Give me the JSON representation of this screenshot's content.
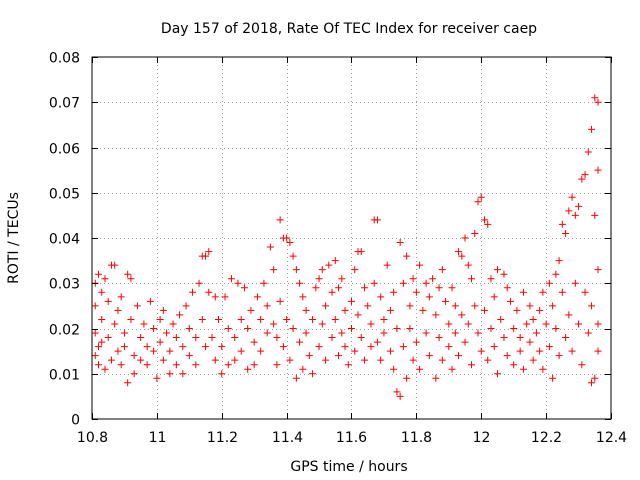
{
  "chart_data": {
    "type": "scatter",
    "title": "Day 157 of 2018, Rate Of TEC Index for receiver caep",
    "xlabel": "GPS time / hours",
    "ylabel": "ROTI / TECUs",
    "xlim": [
      10.8,
      12.4
    ],
    "ylim": [
      0,
      0.08
    ],
    "x_ticks": [
      10.8,
      11,
      11.2,
      11.4,
      11.6,
      11.8,
      12,
      12.2,
      12.4
    ],
    "x_tick_labels": [
      "10.8",
      "11",
      "11.2",
      "11.4",
      "11.6",
      "11.8",
      "12",
      "12.2",
      "12.4"
    ],
    "y_ticks": [
      0,
      0.01,
      0.02,
      0.03,
      0.04,
      0.05,
      0.06,
      0.07,
      0.08
    ],
    "y_tick_labels": [
      "0",
      "0.01",
      "0.02",
      "0.03",
      "0.04",
      "0.05",
      "0.06",
      "0.07",
      "0.08"
    ],
    "grid": true,
    "marker": "+",
    "color": "#ff0000",
    "series": [
      {
        "name": "ROTI",
        "points": [
          [
            10.81,
            0.03
          ],
          [
            10.81,
            0.025
          ],
          [
            10.81,
            0.014
          ],
          [
            10.81,
            0.019
          ],
          [
            10.82,
            0.032
          ],
          [
            10.82,
            0.016
          ],
          [
            10.82,
            0.012
          ],
          [
            10.83,
            0.028
          ],
          [
            10.83,
            0.022
          ],
          [
            10.83,
            0.017
          ],
          [
            10.84,
            0.031
          ],
          [
            10.84,
            0.011
          ],
          [
            10.85,
            0.026
          ],
          [
            10.85,
            0.018
          ],
          [
            10.86,
            0.034
          ],
          [
            10.86,
            0.013
          ],
          [
            10.87,
            0.034
          ],
          [
            10.87,
            0.021
          ],
          [
            10.88,
            0.015
          ],
          [
            10.88,
            0.024
          ],
          [
            10.89,
            0.027
          ],
          [
            10.89,
            0.012
          ],
          [
            10.9,
            0.019
          ],
          [
            10.9,
            0.016
          ],
          [
            10.91,
            0.032
          ],
          [
            10.91,
            0.008
          ],
          [
            10.92,
            0.031
          ],
          [
            10.92,
            0.022
          ],
          [
            10.93,
            0.014
          ],
          [
            10.93,
            0.01
          ],
          [
            10.94,
            0.025
          ],
          [
            10.95,
            0.018
          ],
          [
            10.95,
            0.013
          ],
          [
            10.96,
            0.021
          ],
          [
            10.97,
            0.016
          ],
          [
            10.97,
            0.012
          ],
          [
            10.98,
            0.026
          ],
          [
            10.99,
            0.02
          ],
          [
            10.99,
            0.015
          ],
          [
            11.0,
            0.009
          ],
          [
            11.01,
            0.022
          ],
          [
            11.01,
            0.017
          ],
          [
            11.02,
            0.024
          ],
          [
            11.02,
            0.013
          ],
          [
            11.03,
            0.019
          ],
          [
            11.04,
            0.01
          ],
          [
            11.04,
            0.015
          ],
          [
            11.05,
            0.021
          ],
          [
            11.06,
            0.018
          ],
          [
            11.06,
            0.012
          ],
          [
            11.07,
            0.023
          ],
          [
            11.08,
            0.016
          ],
          [
            11.08,
            0.01
          ],
          [
            11.09,
            0.025
          ],
          [
            11.1,
            0.02
          ],
          [
            11.1,
            0.014
          ],
          [
            11.11,
            0.028
          ],
          [
            11.12,
            0.018
          ],
          [
            11.12,
            0.012
          ],
          [
            11.13,
            0.03
          ],
          [
            11.14,
            0.036
          ],
          [
            11.14,
            0.022
          ],
          [
            11.15,
            0.036
          ],
          [
            11.15,
            0.016
          ],
          [
            11.16,
            0.037
          ],
          [
            11.16,
            0.028
          ],
          [
            11.17,
            0.018
          ],
          [
            11.18,
            0.013
          ],
          [
            11.18,
            0.027
          ],
          [
            11.19,
            0.022
          ],
          [
            11.2,
            0.016
          ],
          [
            11.2,
            0.01
          ],
          [
            11.21,
            0.027
          ],
          [
            11.22,
            0.02
          ],
          [
            11.22,
            0.012
          ],
          [
            11.23,
            0.031
          ],
          [
            11.24,
            0.018
          ],
          [
            11.24,
            0.013
          ],
          [
            11.25,
            0.03
          ],
          [
            11.26,
            0.022
          ],
          [
            11.26,
            0.015
          ],
          [
            11.27,
            0.029
          ],
          [
            11.28,
            0.02
          ],
          [
            11.28,
            0.011
          ],
          [
            11.29,
            0.024
          ],
          [
            11.3,
            0.017
          ],
          [
            11.3,
            0.012
          ],
          [
            11.31,
            0.027
          ],
          [
            11.32,
            0.022
          ],
          [
            11.32,
            0.015
          ],
          [
            11.33,
            0.03
          ],
          [
            11.34,
            0.025
          ],
          [
            11.34,
            0.019
          ],
          [
            11.35,
            0.038
          ],
          [
            11.36,
            0.033
          ],
          [
            11.36,
            0.021
          ],
          [
            11.37,
            0.018
          ],
          [
            11.37,
            0.012
          ],
          [
            11.38,
            0.044
          ],
          [
            11.38,
            0.026
          ],
          [
            11.39,
            0.04
          ],
          [
            11.39,
            0.016
          ],
          [
            11.4,
            0.04
          ],
          [
            11.4,
            0.022
          ],
          [
            11.41,
            0.039
          ],
          [
            11.41,
            0.013
          ],
          [
            11.42,
            0.036
          ],
          [
            11.42,
            0.02
          ],
          [
            11.43,
            0.033
          ],
          [
            11.43,
            0.009
          ],
          [
            11.44,
            0.03
          ],
          [
            11.44,
            0.017
          ],
          [
            11.45,
            0.027
          ],
          [
            11.45,
            0.011
          ],
          [
            11.46,
            0.024
          ],
          [
            11.46,
            0.019
          ],
          [
            11.47,
            0.014
          ],
          [
            11.48,
            0.022
          ],
          [
            11.48,
            0.01
          ],
          [
            11.49,
            0.029
          ],
          [
            11.5,
            0.031
          ],
          [
            11.5,
            0.016
          ],
          [
            11.51,
            0.033
          ],
          [
            11.51,
            0.021
          ],
          [
            11.52,
            0.025
          ],
          [
            11.52,
            0.013
          ],
          [
            11.53,
            0.034
          ],
          [
            11.54,
            0.028
          ],
          [
            11.54,
            0.018
          ],
          [
            11.55,
            0.035
          ],
          [
            11.55,
            0.022
          ],
          [
            11.56,
            0.029
          ],
          [
            11.56,
            0.014
          ],
          [
            11.57,
            0.031
          ],
          [
            11.57,
            0.019
          ],
          [
            11.58,
            0.024
          ],
          [
            11.58,
            0.016
          ],
          [
            11.59,
            0.012
          ],
          [
            11.6,
            0.026
          ],
          [
            11.6,
            0.02
          ],
          [
            11.61,
            0.033
          ],
          [
            11.61,
            0.015
          ],
          [
            11.62,
            0.037
          ],
          [
            11.62,
            0.023
          ],
          [
            11.63,
            0.037
          ],
          [
            11.63,
            0.018
          ],
          [
            11.64,
            0.029
          ],
          [
            11.64,
            0.013
          ],
          [
            11.65,
            0.025
          ],
          [
            11.66,
            0.021
          ],
          [
            11.66,
            0.016
          ],
          [
            11.67,
            0.044
          ],
          [
            11.67,
            0.03
          ],
          [
            11.68,
            0.044
          ],
          [
            11.68,
            0.017
          ],
          [
            11.69,
            0.027
          ],
          [
            11.69,
            0.013
          ],
          [
            11.7,
            0.022
          ],
          [
            11.7,
            0.019
          ],
          [
            11.71,
            0.034
          ],
          [
            11.72,
            0.015
          ],
          [
            11.72,
            0.024
          ],
          [
            11.73,
            0.028
          ],
          [
            11.73,
            0.011
          ],
          [
            11.74,
            0.02
          ],
          [
            11.74,
            0.006
          ],
          [
            11.75,
            0.039
          ],
          [
            11.75,
            0.005
          ],
          [
            11.76,
            0.03
          ],
          [
            11.76,
            0.016
          ],
          [
            11.77,
            0.036
          ],
          [
            11.77,
            0.009
          ],
          [
            11.78,
            0.025
          ],
          [
            11.78,
            0.02
          ],
          [
            11.79,
            0.031
          ],
          [
            11.79,
            0.013
          ],
          [
            11.8,
            0.028
          ],
          [
            11.8,
            0.017
          ],
          [
            11.81,
            0.034
          ],
          [
            11.81,
            0.011
          ],
          [
            11.82,
            0.024
          ],
          [
            11.83,
            0.03
          ],
          [
            11.83,
            0.019
          ],
          [
            11.84,
            0.027
          ],
          [
            11.84,
            0.014
          ],
          [
            11.85,
            0.031
          ],
          [
            11.86,
            0.023
          ],
          [
            11.86,
            0.009
          ],
          [
            11.87,
            0.029
          ],
          [
            11.87,
            0.018
          ],
          [
            11.88,
            0.033
          ],
          [
            11.88,
            0.013
          ],
          [
            11.89,
            0.026
          ],
          [
            11.9,
            0.021
          ],
          [
            11.9,
            0.016
          ],
          [
            11.91,
            0.029
          ],
          [
            11.91,
            0.011
          ],
          [
            11.92,
            0.025
          ],
          [
            11.92,
            0.019
          ],
          [
            11.93,
            0.037
          ],
          [
            11.93,
            0.014
          ],
          [
            11.94,
            0.036
          ],
          [
            11.94,
            0.023
          ],
          [
            11.95,
            0.04
          ],
          [
            11.95,
            0.017
          ],
          [
            11.96,
            0.034
          ],
          [
            11.96,
            0.021
          ],
          [
            11.97,
            0.031
          ],
          [
            11.97,
            0.012
          ],
          [
            11.98,
            0.041
          ],
          [
            11.98,
            0.025
          ],
          [
            11.99,
            0.048
          ],
          [
            11.99,
            0.019
          ],
          [
            12.0,
            0.049
          ],
          [
            12.0,
            0.015
          ],
          [
            12.01,
            0.044
          ],
          [
            12.01,
            0.024
          ],
          [
            12.02,
            0.043
          ],
          [
            12.02,
            0.013
          ],
          [
            12.03,
            0.031
          ],
          [
            12.03,
            0.02
          ],
          [
            12.04,
            0.027
          ],
          [
            12.04,
            0.016
          ],
          [
            12.05,
            0.033
          ],
          [
            12.05,
            0.01
          ],
          [
            12.06,
            0.022
          ],
          [
            12.07,
            0.032
          ],
          [
            12.07,
            0.018
          ],
          [
            12.08,
            0.029
          ],
          [
            12.08,
            0.014
          ],
          [
            12.09,
            0.026
          ],
          [
            12.1,
            0.02
          ],
          [
            12.1,
            0.012
          ],
          [
            12.11,
            0.024
          ],
          [
            12.12,
            0.018
          ],
          [
            12.12,
            0.015
          ],
          [
            12.13,
            0.028
          ],
          [
            12.13,
            0.011
          ],
          [
            12.14,
            0.021
          ],
          [
            12.15,
            0.025
          ],
          [
            12.15,
            0.017
          ],
          [
            12.16,
            0.022
          ],
          [
            12.16,
            0.013
          ],
          [
            12.17,
            0.019
          ],
          [
            12.18,
            0.024
          ],
          [
            12.18,
            0.015
          ],
          [
            12.19,
            0.028
          ],
          [
            12.19,
            0.011
          ],
          [
            12.2,
            0.021
          ],
          [
            12.21,
            0.03
          ],
          [
            12.21,
            0.016
          ],
          [
            12.22,
            0.025
          ],
          [
            12.22,
            0.009
          ],
          [
            12.23,
            0.032
          ],
          [
            12.23,
            0.02
          ],
          [
            12.24,
            0.035
          ],
          [
            12.24,
            0.014
          ],
          [
            12.25,
            0.043
          ],
          [
            12.25,
            0.028
          ],
          [
            12.26,
            0.041
          ],
          [
            12.26,
            0.018
          ],
          [
            12.27,
            0.046
          ],
          [
            12.27,
            0.023
          ],
          [
            12.28,
            0.049
          ],
          [
            12.28,
            0.015
          ],
          [
            12.29,
            0.045
          ],
          [
            12.29,
            0.03
          ],
          [
            12.3,
            0.047
          ],
          [
            12.3,
            0.021
          ],
          [
            12.31,
            0.053
          ],
          [
            12.31,
            0.012
          ],
          [
            12.32,
            0.054
          ],
          [
            12.32,
            0.028
          ],
          [
            12.33,
            0.059
          ],
          [
            12.33,
            0.019
          ],
          [
            12.34,
            0.064
          ],
          [
            12.34,
            0.025
          ],
          [
            12.35,
            0.071
          ],
          [
            12.35,
            0.045
          ],
          [
            12.36,
            0.07
          ],
          [
            12.36,
            0.055
          ],
          [
            12.36,
            0.033
          ],
          [
            12.36,
            0.015
          ],
          [
            12.35,
            0.009
          ],
          [
            12.34,
            0.008
          ],
          [
            12.36,
            0.021
          ]
        ]
      }
    ]
  }
}
